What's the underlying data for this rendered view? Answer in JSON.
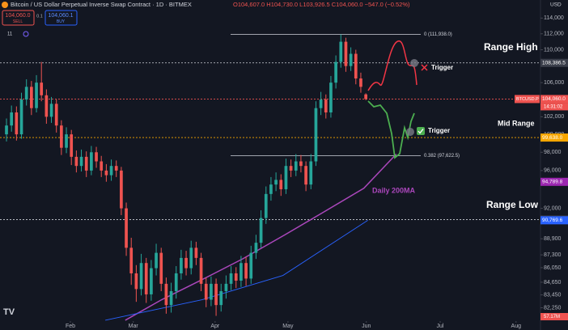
{
  "header": {
    "title": "Bitcoin / US Dollar Perpetual Inverse Swap Contract · 1D · BITMEX",
    "ohlc": "O104,607.0 H104,730.0 L103,926.5 C104,060.0 −547.0 (−0.52%)",
    "sell_price": "104,060.0",
    "sell_label": "SELL",
    "spread": "0.1",
    "buy_price": "104,060.1",
    "buy_label": "BUY",
    "indicator_count": "11"
  },
  "chart_data": {
    "type": "candlestick",
    "open": [
      100000,
      101000,
      102500,
      100000,
      104000,
      105500,
      103000,
      106000,
      104500,
      102000,
      103500,
      101000,
      98500,
      100000,
      97500,
      96500,
      97500,
      96000,
      98000,
      97000,
      96000,
      95500,
      96500,
      96000,
      92000,
      88000,
      85500,
      84000,
      86500,
      83500,
      86000,
      87500,
      84500,
      82500,
      83800,
      85500,
      87000,
      86000,
      88000,
      87000,
      84500,
      83000,
      84500,
      82500,
      83800,
      84500,
      85500,
      84800,
      86500,
      85000,
      87500,
      88500,
      91000,
      93500,
      94500,
      95000,
      94000,
      96500,
      96000,
      97000,
      96500,
      94500,
      97000,
      103000,
      104000,
      102500,
      106000,
      108500,
      111000,
      108000,
      109500,
      106500,
      104607
    ],
    "high": [
      101800,
      103300,
      103200,
      104800,
      106400,
      106200,
      106900,
      108500,
      105200,
      104300,
      104000,
      101600,
      100800,
      100500,
      98200,
      98300,
      98100,
      98700,
      98600,
      97600,
      96700,
      97200,
      97100,
      96400,
      92600,
      89000,
      86300,
      87400,
      87000,
      86800,
      88400,
      88000,
      85100,
      84600,
      86200,
      87800,
      87700,
      88700,
      88600,
      87500,
      85100,
      85200,
      85000,
      84500,
      85300,
      86200,
      86100,
      87200,
      87100,
      88200,
      89300,
      91800,
      94300,
      95300,
      95800,
      95600,
      97300,
      97200,
      97800,
      97700,
      97000,
      97800,
      103800,
      104900,
      104600,
      106800,
      109300,
      111938,
      111500,
      110300,
      110000,
      107200,
      104730
    ],
    "low": [
      99200,
      100300,
      99300,
      99500,
      103300,
      102200,
      102500,
      103800,
      101200,
      101300,
      100200,
      97700,
      97900,
      96600,
      95800,
      95900,
      95300,
      95500,
      96300,
      95300,
      94800,
      94900,
      95300,
      91300,
      87200,
      84400,
      82800,
      83400,
      82700,
      82900,
      85300,
      83800,
      81700,
      81800,
      83100,
      84900,
      85300,
      85400,
      86300,
      83800,
      82300,
      82400,
      81500,
      81900,
      83100,
      83900,
      84100,
      84200,
      84300,
      84500,
      86900,
      88000,
      90400,
      92800,
      93800,
      93300,
      93500,
      95300,
      95400,
      95800,
      93800,
      94000,
      96500,
      102200,
      101800,
      101900,
      105300,
      107800,
      107300,
      107400,
      105800,
      104800,
      103926
    ],
    "close": [
      101000,
      102500,
      100000,
      104000,
      105500,
      103000,
      106000,
      104500,
      102000,
      103500,
      101000,
      98500,
      100000,
      97500,
      96500,
      97500,
      96000,
      98000,
      97000,
      96000,
      95500,
      96500,
      96000,
      92000,
      88000,
      85500,
      84000,
      86500,
      83500,
      86000,
      87500,
      84500,
      82500,
      83800,
      85500,
      87000,
      86000,
      88000,
      87000,
      84500,
      83000,
      84500,
      82500,
      83800,
      84500,
      85500,
      84800,
      86500,
      85000,
      87500,
      88500,
      91000,
      93500,
      94500,
      95000,
      94000,
      96500,
      96000,
      97000,
      96500,
      94500,
      97000,
      103000,
      104000,
      102500,
      106000,
      108500,
      111000,
      108000,
      109500,
      106500,
      105500,
      104060
    ],
    "up_color": "#26a69a",
    "down_color": "#ef5350",
    "xlim": [
      -1.3,
      107
    ],
    "ylim": [
      80800,
      115500
    ],
    "log_scale": true,
    "grid": false,
    "xticks": [
      {
        "value": 12.8,
        "label": "Feb"
      },
      {
        "value": 25.4,
        "label": "Mar"
      },
      {
        "value": 41.8,
        "label": "Apr"
      },
      {
        "value": 56.4,
        "label": "May"
      },
      {
        "value": 72.1,
        "label": "Jun"
      },
      {
        "value": 86.9,
        "label": "Jul"
      },
      {
        "value": 102.1,
        "label": "Aug"
      }
    ],
    "yticks": [
      {
        "value": 114000,
        "label": "114,000"
      },
      {
        "value": 112000,
        "label": "112,000"
      },
      {
        "value": 110000,
        "label": "110,000"
      },
      {
        "value": 106000,
        "label": "106,000"
      },
      {
        "value": 102000,
        "label": "102,000"
      },
      {
        "value": 100000,
        "label": "100,000"
      },
      {
        "value": 98000,
        "label": "98,000"
      },
      {
        "value": 96000,
        "label": "96,000"
      },
      {
        "value": 92000,
        "label": "92,000"
      },
      {
        "value": 88900,
        "label": "88,900"
      },
      {
        "value": 87300,
        "label": "87,300"
      },
      {
        "value": 86050,
        "label": "86,050"
      },
      {
        "value": 84650,
        "label": "84,650"
      },
      {
        "value": 83450,
        "label": "83,450"
      },
      {
        "value": 82250,
        "label": "82,250"
      }
    ],
    "axis_unit": "USD",
    "series": [
      {
        "name": "Daily 200MA",
        "color": "#ab47bc",
        "x": [
          23.8,
          31.1,
          39.2,
          47.3,
          55.8,
          63.5,
          71.6,
          78.1
        ],
        "values": [
          81100,
          83000,
          84900,
          86900,
          89300,
          91600,
          94100,
          97800
        ]
      },
      {
        "color": "#2962ff",
        "x": [
          19.8,
          39.2,
          55.4,
          72.4
        ],
        "values": [
          81100,
          83000,
          85300,
          90770
        ]
      }
    ],
    "levels": [
      {
        "value": 108386.5,
        "label": "108,386.5",
        "color": "#d1d4dc",
        "tag": "#3a3e4a",
        "line": true
      },
      {
        "value": 104060,
        "label": "104,060.0",
        "color": "#ef5350",
        "tag": "#ef5350",
        "line": true
      },
      {
        "value": 99638,
        "label": "99,638.0",
        "color": "#f7a600",
        "tag": "#f7a600",
        "line": true
      },
      {
        "value": 94789.8,
        "label": "94,789.8",
        "color": "#ab47bc",
        "tag": "#9c27b0",
        "line": false
      },
      {
        "value": 90845.5,
        "label": "90,845.5",
        "color": "#d1d4dc",
        "tag": "#3a3e4a",
        "line": true
      },
      {
        "value": 90769.6,
        "label": "90,769.6",
        "color": "#2962ff",
        "tag": "#2962ff",
        "line": false
      }
    ],
    "fib": [
      {
        "value": 111938,
        "label": "0 (111,938.0)"
      },
      {
        "value": 97622.5,
        "label": "0.382 (97,622.5)"
      }
    ],
    "symbol_tag": "BTCUSD.P",
    "countdown": "14:31:02",
    "volume_tag": "57.17M",
    "annotations": [
      "Range High",
      "Mid Range",
      "Range Low",
      "Trigger",
      "Trigger"
    ]
  }
}
